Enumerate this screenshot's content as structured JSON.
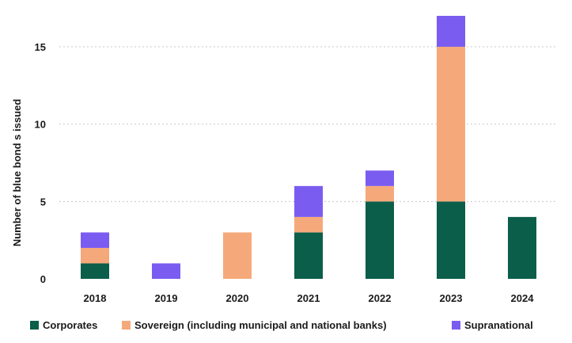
{
  "chart_data": {
    "type": "bar",
    "stacked": true,
    "title": "",
    "xlabel": "",
    "ylabel": "Number of blue bond s issued",
    "categories": [
      "2018",
      "2019",
      "2020",
      "2021",
      "2022",
      "2023",
      "2024"
    ],
    "series": [
      {
        "name": "Corporates",
        "color": "#0b5e4a",
        "values": [
          1,
          0,
          0,
          3,
          5,
          5,
          4
        ]
      },
      {
        "name": "Sovereign (including municipal and national banks)",
        "color": "#f5a97a",
        "values": [
          1,
          0,
          3,
          1,
          1,
          10,
          0
        ]
      },
      {
        "name": "Supranational",
        "color": "#7b5cf0",
        "values": [
          1,
          1,
          0,
          2,
          1,
          2,
          0
        ]
      }
    ],
    "ylim": [
      0,
      17
    ],
    "yticks": [
      0,
      5,
      10,
      15
    ],
    "grid": true,
    "legend_position": "bottom"
  }
}
